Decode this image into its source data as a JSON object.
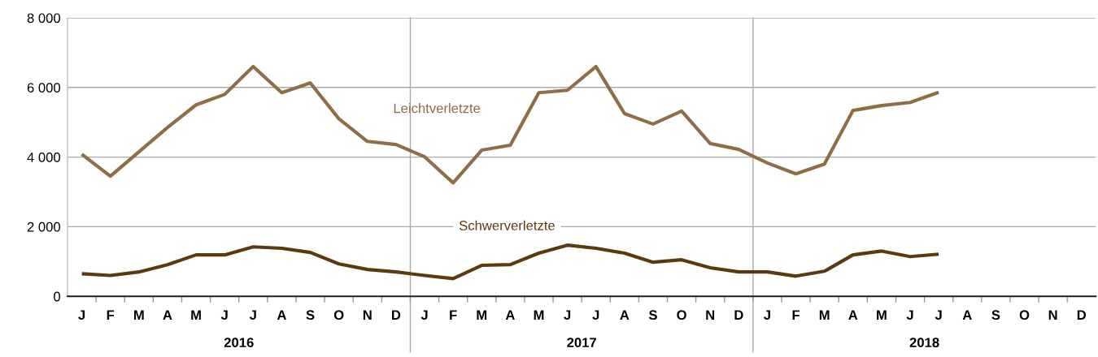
{
  "chart_data": {
    "type": "line",
    "categories": [
      "J",
      "F",
      "M",
      "A",
      "M",
      "J",
      "J",
      "A",
      "S",
      "O",
      "N",
      "D",
      "J",
      "F",
      "M",
      "A",
      "M",
      "J",
      "J",
      "A",
      "S",
      "O",
      "N",
      "D",
      "J",
      "F",
      "M",
      "A",
      "M",
      "J",
      "J",
      "A",
      "S",
      "O",
      "N",
      "D"
    ],
    "series": [
      {
        "name": "Leichtverletzte",
        "color": "#8f6d47",
        "values": [
          4080,
          3450,
          4150,
          4850,
          5500,
          5800,
          6600,
          5850,
          6130,
          5100,
          4450,
          4360,
          4010,
          3260,
          4200,
          4340,
          5850,
          5920,
          6600,
          5250,
          4950,
          5320,
          4390,
          4220,
          3830,
          3520,
          3800,
          5340,
          5480,
          5570,
          5860,
          null,
          null,
          null,
          null,
          null
        ]
      },
      {
        "name": "Schwerverletzte",
        "color": "#5c3a0f",
        "values": [
          650,
          600,
          700,
          910,
          1190,
          1190,
          1420,
          1380,
          1260,
          930,
          770,
          700,
          600,
          510,
          890,
          910,
          1240,
          1470,
          1380,
          1240,
          980,
          1050,
          820,
          700,
          700,
          580,
          720,
          1190,
          1300,
          1140,
          1210,
          null,
          null,
          null,
          null,
          null
        ]
      }
    ],
    "annotations": [
      "2016",
      "2017",
      "2018"
    ],
    "ylim": [
      0,
      8000
    ],
    "yticks": [
      {
        "value": 0,
        "label": "0"
      },
      {
        "value": 2000,
        "label": "2 000"
      },
      {
        "value": 4000,
        "label": "4 000"
      },
      {
        "value": 6000,
        "label": "6 000"
      },
      {
        "value": 8000,
        "label": "8 000"
      }
    ],
    "grid": "y",
    "legend": false,
    "marker": "none",
    "line_style": "solid"
  }
}
